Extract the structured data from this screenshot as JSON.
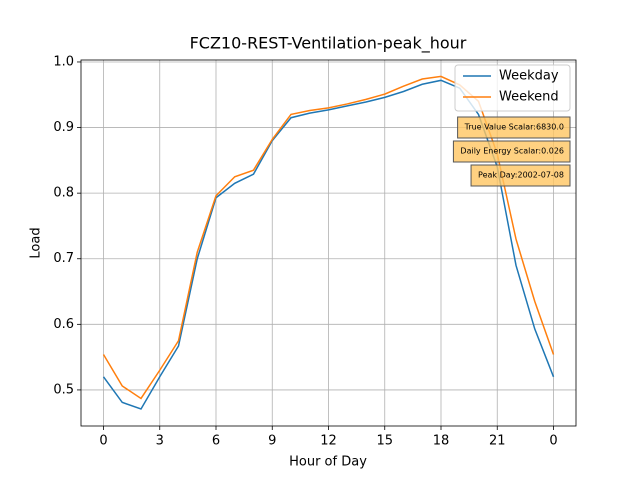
{
  "chart_data": {
    "type": "line",
    "title": "FCZ10-REST-Ventilation-peak_hour",
    "x_label": "Hour of Day",
    "y_label": "Load",
    "x": [
      0,
      1,
      2,
      3,
      4,
      5,
      6,
      7,
      8,
      9,
      10,
      11,
      12,
      13,
      14,
      15,
      16,
      17,
      18,
      19,
      20,
      21,
      22,
      23,
      24
    ],
    "series": [
      {
        "name": "Weekday",
        "color": "#1f77b4",
        "values": [
          0.52,
          0.481,
          0.471,
          0.52,
          0.567,
          0.7,
          0.793,
          0.815,
          0.829,
          0.88,
          0.915,
          0.922,
          0.927,
          0.933,
          0.939,
          0.946,
          0.955,
          0.966,
          0.972,
          0.96,
          0.92,
          0.84,
          0.69,
          0.593,
          0.52
        ]
      },
      {
        "name": "Weekend",
        "color": "#ff7f0e",
        "values": [
          0.554,
          0.506,
          0.487,
          0.53,
          0.575,
          0.71,
          0.796,
          0.825,
          0.835,
          0.882,
          0.92,
          0.926,
          0.93,
          0.936,
          0.943,
          0.951,
          0.963,
          0.974,
          0.978,
          0.965,
          0.94,
          0.86,
          0.73,
          0.635,
          0.554
        ]
      }
    ],
    "xlim": [
      -1.2,
      25.2
    ],
    "xticks": [
      0,
      3,
      6,
      9,
      12,
      15,
      18,
      21,
      {
        "value": 24,
        "label": "0"
      }
    ],
    "ylim": [
      0.445,
      1.003
    ],
    "yticks": [
      0.5,
      0.6,
      0.7,
      0.8,
      0.9,
      {
        "value": 1,
        "label": "1.0"
      }
    ],
    "grid": true,
    "legend": "upper right",
    "annotations": [
      "True Value Scalar:6830.0",
      "Daily Energy Scalar:0.026",
      "Peak Day:2002-07-08"
    ]
  }
}
